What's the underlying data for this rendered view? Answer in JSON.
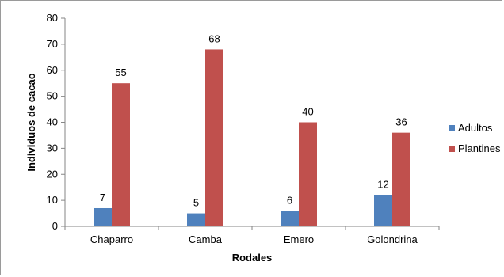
{
  "chart_data": {
    "type": "bar",
    "categories": [
      "Chaparro",
      "Camba",
      "Emero",
      "Golondrina"
    ],
    "series": [
      {
        "name": "Adultos",
        "values": [
          7,
          5,
          6,
          12
        ],
        "color": "#4f81bd"
      },
      {
        "name": "Plantines",
        "values": [
          55,
          68,
          40,
          36
        ],
        "color": "#c0504d"
      }
    ],
    "xlabel": "Rodales",
    "ylabel": "Individuos de cacao",
    "ylim": [
      0,
      80
    ],
    "yticks": [
      0,
      10,
      20,
      30,
      40,
      50,
      60,
      70,
      80
    ],
    "grid": false,
    "legend_position": "right"
  }
}
